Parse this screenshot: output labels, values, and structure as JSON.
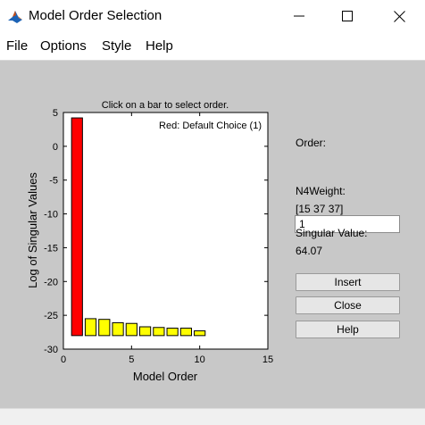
{
  "window": {
    "title": "Model Order Selection",
    "icon": "matlab-logo",
    "controls": [
      "minimize-icon",
      "maximize-icon",
      "close-icon"
    ]
  },
  "menu": [
    "File",
    "Options",
    "Style",
    "Help"
  ],
  "panel": {
    "order_label": "Order:",
    "order_value": "1",
    "weight_label": "N4Weight:",
    "weight_value": "[15 37 37]",
    "singular_label": "Singular Value:",
    "singular_value": "64.07",
    "buttons": {
      "insert": "Insert",
      "close": "Close",
      "help": "Help"
    }
  },
  "colors": {
    "selected_bar": "#ff0000",
    "other_bars": "#ffff00",
    "figure_background": "#c8c8c8",
    "axes_background": "#ffffff"
  },
  "chart_data": {
    "type": "bar",
    "title": "Click on a bar to select order.",
    "annotation": "Red: Default Choice (1)",
    "xlabel": "Model Order",
    "ylabel": "Log of Singular Values",
    "xlim": [
      0,
      15
    ],
    "ylim": [
      -30,
      5
    ],
    "xticks": [
      0,
      5,
      10,
      15
    ],
    "yticks": [
      5,
      0,
      -5,
      -10,
      -15,
      -20,
      -25,
      -30
    ],
    "baseline": -28,
    "x": [
      1,
      2,
      3,
      4,
      5,
      6,
      7,
      8,
      9,
      10
    ],
    "values": [
      4.2,
      -25.5,
      -25.6,
      -26.1,
      -26.2,
      -26.7,
      -26.8,
      -26.9,
      -26.9,
      -27.3
    ],
    "highlighted": [
      1
    ],
    "grid": false
  }
}
